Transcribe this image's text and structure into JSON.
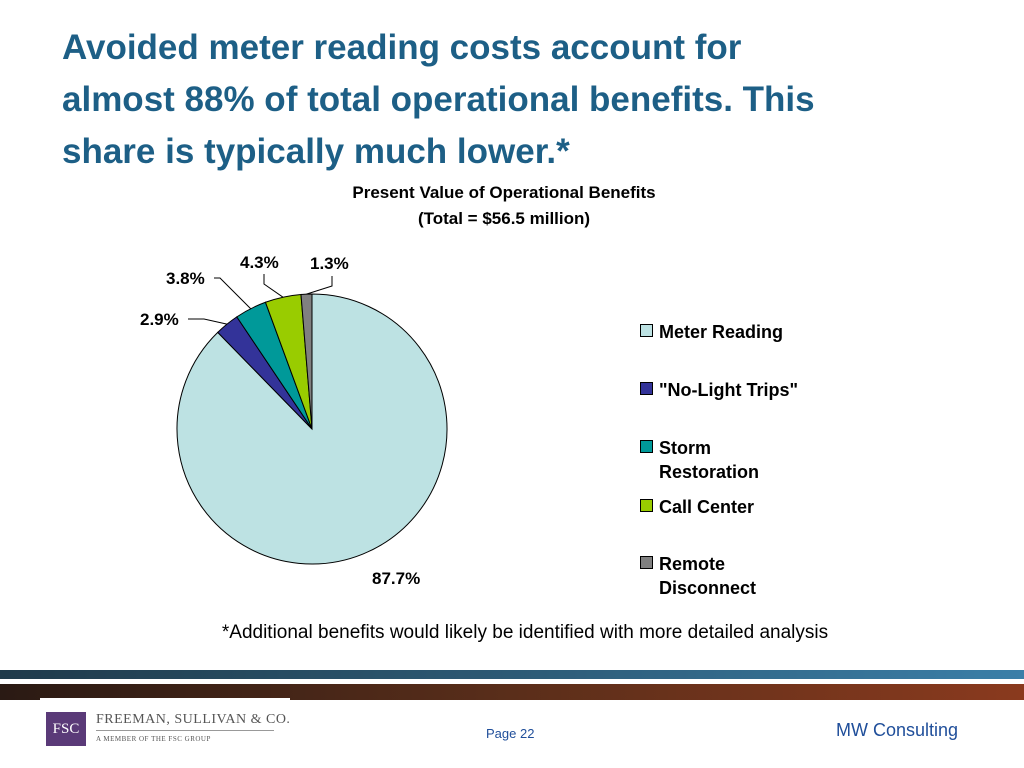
{
  "headline": [
    "Avoided meter reading costs account for",
    "almost 88% of total operational benefits.  This",
    "share is typically much lower.*"
  ],
  "chart_data": {
    "type": "pie",
    "title": "Present Value of Operational Benefits",
    "subtitle": "(Total = $56.5 million)",
    "slices": [
      {
        "name": "Meter Reading",
        "value": 87.7,
        "label": "87.7%",
        "color": "#bde2e3"
      },
      {
        "name": "\"No-Light Trips\"",
        "value": 2.9,
        "label": "2.9%",
        "color": "#333399"
      },
      {
        "name": "Storm Restoration",
        "value": 3.8,
        "label": "3.8%",
        "color": "#009999"
      },
      {
        "name": "Call Center",
        "value": 4.3,
        "label": "4.3%",
        "color": "#99cc00"
      },
      {
        "name": "Remote Disconnect",
        "value": 1.3,
        "label": "1.3%",
        "color": "#808080"
      }
    ],
    "legend_position": "right"
  },
  "footnote": "*Additional benefits would likely be identified with more detailed analysis",
  "footer": {
    "logo_mark": "FSC",
    "logo_name": "FREEMAN, SULLIVAN & CO.",
    "logo_sub": "A MEMBER OF THE FSC GROUP",
    "page": "Page 22",
    "company": "MW Consulting"
  }
}
